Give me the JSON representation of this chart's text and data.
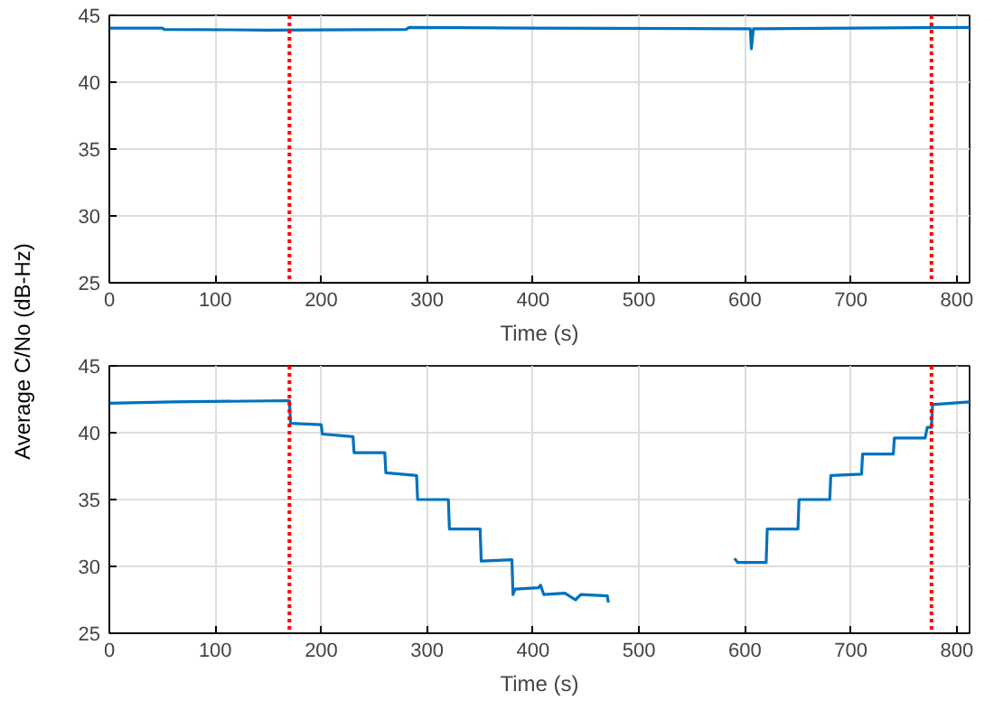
{
  "chart_data": [
    {
      "type": "line",
      "xlabel": "Time (s)",
      "ylabel": "Average C/No (dB-Hz)",
      "xlim": [
        0,
        812
      ],
      "ylim": [
        25,
        45
      ],
      "xticks": [
        0,
        100,
        200,
        300,
        400,
        500,
        600,
        700,
        800
      ],
      "yticks": [
        25,
        30,
        35,
        40,
        45
      ],
      "grid": true,
      "line_style": "solid",
      "marker": "none",
      "x": [
        0,
        50,
        52,
        150,
        280,
        283,
        400,
        600,
        605,
        606,
        608,
        700,
        812
      ],
      "series": [
        {
          "color": "#0072bd",
          "values": [
            44.05,
            44.05,
            43.95,
            43.9,
            43.95,
            44.1,
            44.05,
            44.0,
            44.0,
            42.5,
            44.0,
            44.05,
            44.1
          ]
        }
      ],
      "ref_lines": [
        {
          "axis": "x",
          "value": 170,
          "color": "#ff0000",
          "line_style": "dotted"
        },
        {
          "axis": "x",
          "value": 776,
          "color": "#ff0000",
          "line_style": "dotted"
        }
      ]
    },
    {
      "type": "line",
      "xlabel": "Time (s)",
      "xlim": [
        0,
        812
      ],
      "ylim": [
        25,
        45
      ],
      "xticks": [
        0,
        100,
        200,
        300,
        400,
        500,
        600,
        700,
        800
      ],
      "yticks": [
        25,
        30,
        35,
        40,
        45
      ],
      "grid": true,
      "line_style": "solid",
      "marker": "none",
      "x": [
        0,
        60,
        170,
        171,
        200,
        201,
        230,
        231,
        260,
        261,
        290,
        291,
        320,
        321,
        350,
        351,
        380,
        381,
        383,
        405,
        407,
        410,
        430,
        440,
        445,
        470,
        471,
        530,
        590,
        593,
        620,
        621,
        650,
        651,
        680,
        681,
        710,
        711,
        740,
        741,
        770,
        772,
        776,
        777,
        812
      ],
      "series": [
        {
          "color": "#0072bd",
          "values": [
            42.2,
            42.3,
            42.4,
            40.7,
            40.6,
            39.9,
            39.7,
            38.5,
            38.5,
            37.0,
            36.8,
            35.0,
            35.0,
            32.8,
            32.8,
            30.4,
            30.5,
            27.9,
            28.3,
            28.4,
            28.6,
            27.9,
            28.0,
            27.5,
            27.9,
            27.8,
            27.3,
            null,
            30.6,
            30.3,
            30.3,
            32.8,
            32.8,
            35.0,
            35.0,
            36.8,
            36.9,
            38.4,
            38.4,
            39.6,
            39.6,
            40.4,
            40.4,
            42.1,
            42.3
          ]
        }
      ],
      "ref_lines": [
        {
          "axis": "x",
          "value": 170,
          "color": "#ff0000",
          "line_style": "dotted"
        },
        {
          "axis": "x",
          "value": 776,
          "color": "#ff0000",
          "line_style": "dotted"
        }
      ]
    }
  ]
}
